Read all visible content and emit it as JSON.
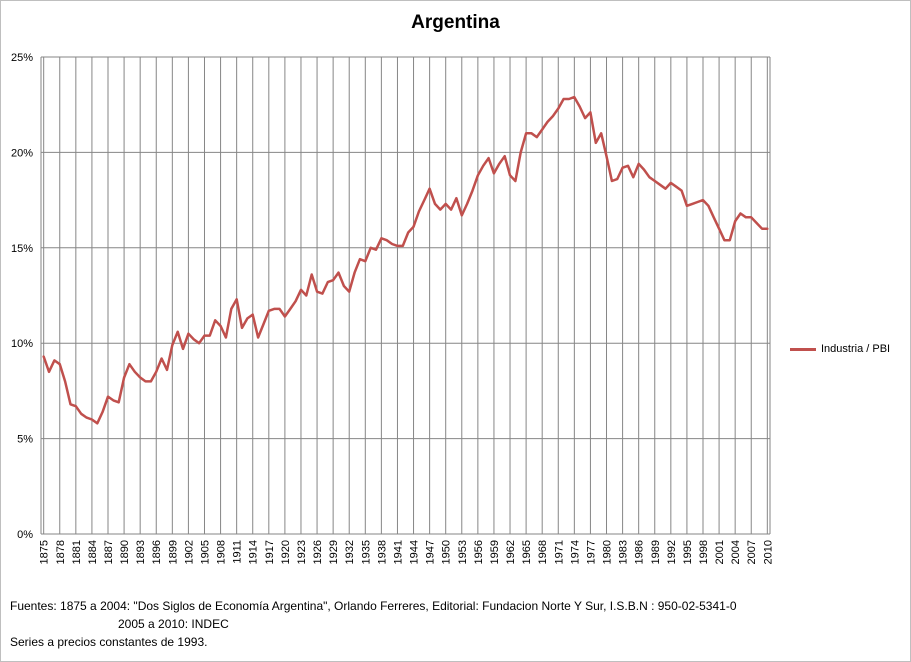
{
  "chart_data": {
    "type": "line",
    "title": "Argentina",
    "xlabel": "",
    "ylabel": "",
    "ylim": [
      0,
      25
    ],
    "y_ticks": [
      "0%",
      "5%",
      "10%",
      "15%",
      "20%",
      "25%"
    ],
    "y_tick_values": [
      0,
      5,
      10,
      15,
      20,
      25
    ],
    "x_range": [
      1875,
      2010
    ],
    "x_tick_years": [
      1875,
      1878,
      1881,
      1884,
      1887,
      1890,
      1893,
      1896,
      1899,
      1902,
      1905,
      1908,
      1911,
      1914,
      1917,
      1920,
      1923,
      1926,
      1929,
      1932,
      1935,
      1938,
      1941,
      1944,
      1947,
      1950,
      1953,
      1956,
      1959,
      1962,
      1965,
      1968,
      1971,
      1974,
      1977,
      1980,
      1983,
      1986,
      1989,
      1992,
      1995,
      1998,
      2001,
      2004,
      2007,
      2010
    ],
    "grid": true,
    "legend_position": "right",
    "series": [
      {
        "name": "Industria / PBI",
        "color": "#c0504d",
        "x": [
          1875,
          1876,
          1877,
          1878,
          1879,
          1880,
          1881,
          1882,
          1883,
          1884,
          1885,
          1886,
          1887,
          1888,
          1889,
          1890,
          1891,
          1892,
          1893,
          1894,
          1895,
          1896,
          1897,
          1898,
          1899,
          1900,
          1901,
          1902,
          1903,
          1904,
          1905,
          1906,
          1907,
          1908,
          1909,
          1910,
          1911,
          1912,
          1913,
          1914,
          1915,
          1916,
          1917,
          1918,
          1919,
          1920,
          1921,
          1922,
          1923,
          1924,
          1925,
          1926,
          1927,
          1928,
          1929,
          1930,
          1931,
          1932,
          1933,
          1934,
          1935,
          1936,
          1937,
          1938,
          1939,
          1940,
          1941,
          1942,
          1943,
          1944,
          1945,
          1946,
          1947,
          1948,
          1949,
          1950,
          1951,
          1952,
          1953,
          1954,
          1955,
          1956,
          1957,
          1958,
          1959,
          1960,
          1961,
          1962,
          1963,
          1964,
          1965,
          1966,
          1967,
          1968,
          1969,
          1970,
          1971,
          1972,
          1973,
          1974,
          1975,
          1976,
          1977,
          1978,
          1979,
          1980,
          1981,
          1982,
          1983,
          1984,
          1985,
          1986,
          1987,
          1988,
          1989,
          1990,
          1991,
          1992,
          1993,
          1994,
          1995,
          1996,
          1997,
          1998,
          1999,
          2000,
          2001,
          2002,
          2003,
          2004,
          2005,
          2006,
          2007,
          2008,
          2009,
          2010
        ],
        "values": [
          9.3,
          8.5,
          9.1,
          8.9,
          8.0,
          6.8,
          6.7,
          6.3,
          6.1,
          6.0,
          5.8,
          6.4,
          7.2,
          7.0,
          6.9,
          8.2,
          8.9,
          8.5,
          8.2,
          8.0,
          8.0,
          8.5,
          9.2,
          8.6,
          9.9,
          10.6,
          9.7,
          10.5,
          10.2,
          10.0,
          10.4,
          10.4,
          11.2,
          10.9,
          10.3,
          11.8,
          12.3,
          10.8,
          11.3,
          11.5,
          10.3,
          11.0,
          11.7,
          11.8,
          11.8,
          11.4,
          11.8,
          12.2,
          12.8,
          12.5,
          13.6,
          12.7,
          12.6,
          13.2,
          13.3,
          13.7,
          13.0,
          12.7,
          13.7,
          14.4,
          14.3,
          15.0,
          14.9,
          15.5,
          15.4,
          15.2,
          15.1,
          15.1,
          15.8,
          16.1,
          16.9,
          17.5,
          18.1,
          17.3,
          17.0,
          17.3,
          17.0,
          17.6,
          16.7,
          17.3,
          18.0,
          18.8,
          19.3,
          19.7,
          18.9,
          19.4,
          19.8,
          18.8,
          18.5,
          20.0,
          21.0,
          21.0,
          20.8,
          21.2,
          21.6,
          21.9,
          22.3,
          22.8,
          22.8,
          22.9,
          22.4,
          21.8,
          22.1,
          20.5,
          21.0,
          19.8,
          18.5,
          18.6,
          19.2,
          19.3,
          18.7,
          19.4,
          19.1,
          18.7,
          18.5,
          18.3,
          18.1,
          18.4,
          18.2,
          18.0,
          17.2,
          17.3,
          17.4,
          17.5,
          17.2,
          16.6,
          16.0,
          15.4,
          15.4,
          16.4,
          16.8,
          16.6,
          16.6,
          16.3,
          16.0,
          16.0
        ]
      }
    ]
  },
  "footnote": {
    "line1": "Fuentes:  1875 a 2004:   \"Dos Siglos de Economía Argentina\", Orlando Ferreres, Editorial: Fundacion Norte Y Sur,  I.S.B.N : 950-02-5341-0",
    "line2": "2005  a 2010:  INDEC",
    "line3": "Series  a precios constantes de 1993."
  }
}
